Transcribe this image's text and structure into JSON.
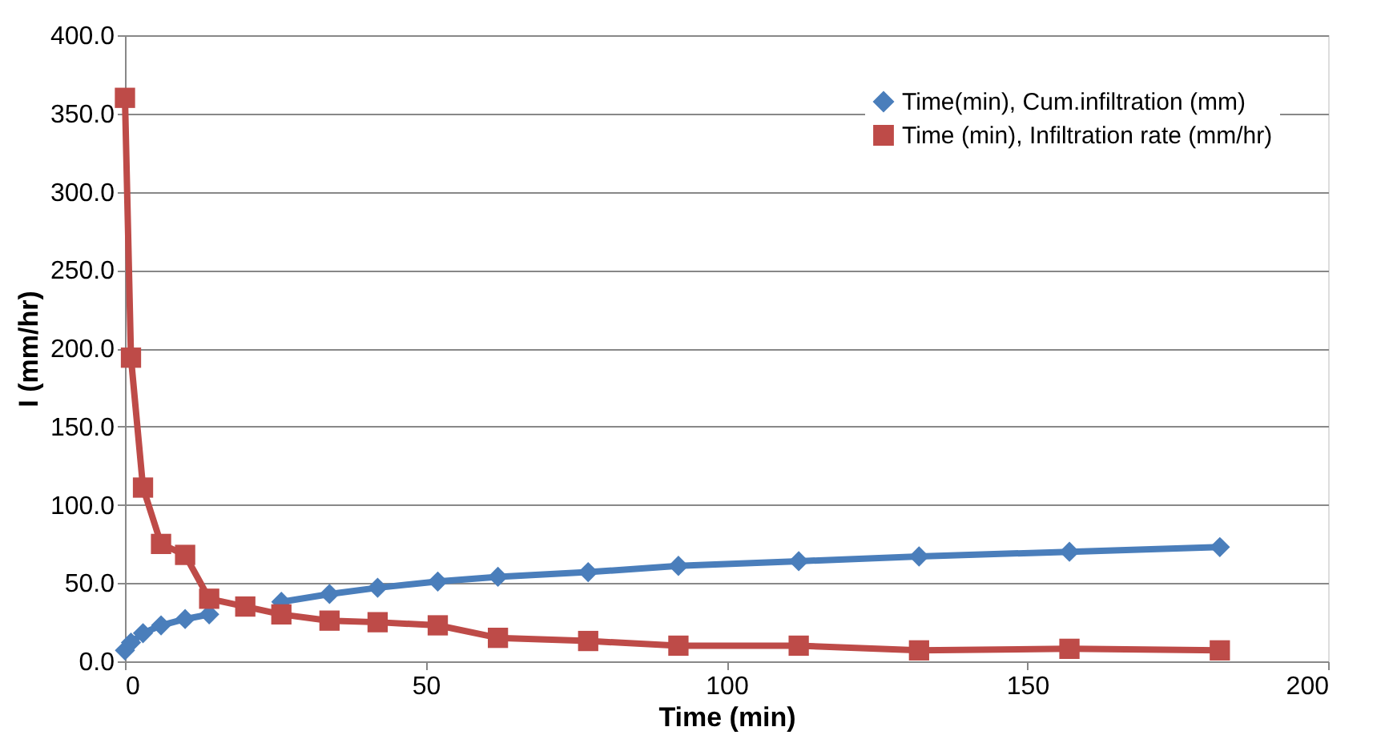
{
  "chart_data": {
    "type": "line",
    "xlabel": "Time (min)",
    "ylabel": "I (mm/hr)",
    "x": [
      0,
      1,
      3,
      6,
      10,
      14,
      20,
      26,
      34,
      42,
      52,
      62,
      77,
      92,
      112,
      132,
      157,
      182
    ],
    "series": [
      {
        "name": "Time(min), Cum.infiltration (mm)",
        "color": "#4a7ebb",
        "marker": "diamond",
        "values": [
          7,
          12,
          18,
          23,
          27,
          30,
          null,
          38,
          43,
          47,
          51,
          54,
          57,
          61,
          64,
          67,
          70,
          73
        ]
      },
      {
        "name": "Time (min), Infiltration rate (mm/hr)",
        "color": "#be4b48",
        "marker": "square",
        "values": [
          360,
          194,
          111,
          75,
          68,
          40,
          35,
          30,
          26,
          25,
          23,
          15,
          13,
          10,
          10,
          7,
          8,
          7
        ]
      }
    ],
    "xlim": [
      0,
      200
    ],
    "xticks": [
      0,
      50,
      100,
      150,
      200
    ],
    "ylim": [
      0,
      400
    ],
    "yticks": [
      {
        "value": 0,
        "label": "0.0"
      },
      {
        "value": 50,
        "label": "50.0"
      },
      {
        "value": 100,
        "label": "100.0"
      },
      {
        "value": 150,
        "label": "150.0"
      },
      {
        "value": 200,
        "label": "200.0"
      },
      {
        "value": 250,
        "label": "250.0"
      },
      {
        "value": 300,
        "label": "300.0"
      },
      {
        "value": 350,
        "label": "350.0"
      },
      {
        "value": 400,
        "label": "400.0"
      }
    ],
    "grid": "y",
    "legend": "top right",
    "line_style": "solid"
  }
}
